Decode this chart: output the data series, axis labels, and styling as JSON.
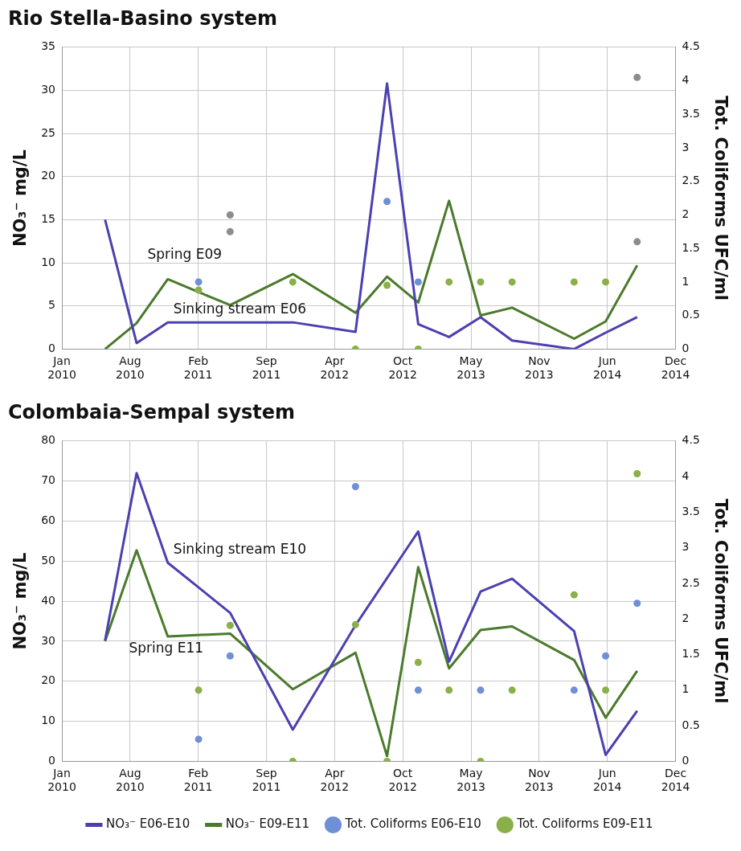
{
  "chart_data": [
    {
      "type": "line",
      "title": "Rio Stella-Basino system",
      "ylabel": "NO₃⁻ mg/L",
      "y2label": "Tot. Coliforms UFC/ml",
      "xlim": [
        "2010-01-26",
        "2014-12-22"
      ],
      "xticks": [
        {
          "value": "2010-01-26",
          "label": "Jan 2010"
        },
        {
          "value": "2010-08-13",
          "label": "Aug 2010"
        },
        {
          "value": "2011-02-28",
          "label": "Feb 2011"
        },
        {
          "value": "2011-09-15",
          "label": "Sep 2011"
        },
        {
          "value": "2012-04-01",
          "label": "Apr 2012"
        },
        {
          "value": "2012-10-17",
          "label": "Oct 2012"
        },
        {
          "value": "2013-05-04",
          "label": "May 2013"
        },
        {
          "value": "2013-11-19",
          "label": "Nov 2013"
        },
        {
          "value": "2014-06-06",
          "label": "Jun 2014"
        },
        {
          "value": "2014-12-22",
          "label": "Dec 2014"
        }
      ],
      "ylim": [
        0,
        35
      ],
      "yticks": [
        0,
        5,
        10,
        15,
        20,
        25,
        30,
        35
      ],
      "y2lim": [
        0,
        4.5
      ],
      "y2ticks": [
        0,
        0.5,
        1,
        1.5,
        2,
        2.5,
        3,
        3.5,
        4,
        4.5
      ],
      "grid": true,
      "legend": false,
      "marker": "none",
      "series": [
        {
          "color": "#4b40b0",
          "x": [
            "2010-06-01",
            "2010-09-01",
            "2010-12-01",
            "2011-06-01",
            "2011-12-01",
            "2012-06-01",
            "2012-09-01",
            "2012-12-01",
            "2013-03-01",
            "2013-06-01",
            "2013-09-01",
            "2014-03-01",
            "2014-06-01",
            "2014-09-01"
          ],
          "values": [
            15,
            0.7,
            3.1,
            3.1,
            3.1,
            2,
            30.8,
            2.9,
            1.4,
            3.7,
            1,
            0,
            1.9,
            3.7
          ]
        },
        {
          "color": "#4a7a2c",
          "x": [
            "2010-06-01",
            "2010-09-01",
            "2010-12-01",
            "2011-06-01",
            "2011-12-01",
            "2012-06-01",
            "2012-09-01",
            "2012-12-01",
            "2013-03-01",
            "2013-06-01",
            "2013-09-01",
            "2014-03-01",
            "2014-06-01",
            "2014-09-01"
          ],
          "values": [
            0,
            3,
            8.1,
            5.1,
            8.7,
            4.2,
            8.4,
            5.4,
            17.2,
            3.9,
            4.8,
            1.2,
            3.2,
            9.7
          ]
        },
        {
          "type": "scatter",
          "marker": "circle",
          "axis": "y2",
          "color": "#6f8fd6",
          "colors": [
            "#6f8fd6",
            "#8c8c8c",
            "#6f8fd6",
            "#6f8fd6",
            "#8c8c8c"
          ],
          "x": [
            "2011-03-01",
            "2011-06-01",
            "2012-09-01",
            "2012-12-01",
            "2014-09-01"
          ],
          "values": [
            1,
            2,
            2.2,
            1,
            4.05
          ]
        },
        {
          "type": "scatter",
          "marker": "circle",
          "axis": "y2",
          "color": "#8ab04a",
          "colors": [
            "#8ab04a",
            "#8c8c8c",
            "#8ab04a",
            "#8ab04a",
            "#8ab04a",
            "#8ab04a",
            "#8ab04a",
            "#8ab04a",
            "#8ab04a",
            "#8ab04a",
            "#8ab04a",
            "#8c8c8c"
          ],
          "x": [
            "2011-03-01",
            "2011-06-01",
            "2011-12-01",
            "2012-06-01",
            "2012-09-01",
            "2012-12-01",
            "2013-03-01",
            "2013-06-01",
            "2013-09-01",
            "2014-03-01",
            "2014-06-01",
            "2014-09-01"
          ],
          "values": [
            0.88,
            1.75,
            1,
            0,
            0.95,
            0,
            1,
            1,
            1,
            1,
            1,
            1.6
          ]
        }
      ],
      "annotations": [
        "Spring E09",
        "Sinking stream E06"
      ]
    },
    {
      "type": "line",
      "title": "Colombaia-Sempal system",
      "ylabel": "NO₃⁻ mg/L",
      "y2label": "Tot. Coliforms UFC/ml",
      "xlim": [
        "2010-01-26",
        "2014-12-22"
      ],
      "xticks": [
        {
          "value": "2010-01-26",
          "label": "Jan 2010"
        },
        {
          "value": "2010-08-13",
          "label": "Aug 2010"
        },
        {
          "value": "2011-02-28",
          "label": "Feb 2011"
        },
        {
          "value": "2011-09-15",
          "label": "Sep 2011"
        },
        {
          "value": "2012-04-01",
          "label": "Apr 2012"
        },
        {
          "value": "2012-10-17",
          "label": "Oct 2012"
        },
        {
          "value": "2013-05-04",
          "label": "May 2013"
        },
        {
          "value": "2013-11-19",
          "label": "Nov 2013"
        },
        {
          "value": "2014-06-06",
          "label": "Jun 2014"
        },
        {
          "value": "2014-12-22",
          "label": "Dec 2014"
        }
      ],
      "ylim": [
        0,
        80
      ],
      "yticks": [
        0,
        10,
        20,
        30,
        40,
        50,
        60,
        70,
        80
      ],
      "y2lim": [
        0,
        4.5
      ],
      "y2ticks": [
        0,
        0.5,
        1,
        1.5,
        2,
        2.5,
        3,
        3.5,
        4,
        4.5
      ],
      "grid": true,
      "legend": "bottom",
      "marker": "none",
      "series": [
        {
          "name": "NO₃⁻ E06-E10",
          "color": "#4b40b0",
          "x": [
            "2010-06-01",
            "2010-09-01",
            "2010-12-01",
            "2011-06-01",
            "2011-12-01",
            "2012-06-01",
            "2012-12-01",
            "2013-03-01",
            "2013-06-01",
            "2013-09-01",
            "2014-03-01",
            "2014-06-01",
            "2014-09-01"
          ],
          "values": [
            30.2,
            72,
            49.6,
            37.1,
            7.9,
            34,
            57.4,
            24.9,
            42.4,
            45.6,
            32.5,
            1.6,
            12.6
          ]
        },
        {
          "name": "NO₃⁻ E09-E11",
          "color": "#4a7a2c",
          "x": [
            "2010-06-01",
            "2010-09-01",
            "2010-12-01",
            "2011-06-01",
            "2011-12-01",
            "2012-06-01",
            "2012-09-01",
            "2012-12-01",
            "2013-03-01",
            "2013-06-01",
            "2013-09-01",
            "2014-03-01",
            "2014-06-01",
            "2014-09-01"
          ],
          "values": [
            30,
            52.7,
            31.2,
            31.9,
            18,
            27.1,
            1.3,
            48.5,
            23.2,
            32.8,
            33.7,
            25.3,
            10.9,
            22.6
          ]
        },
        {
          "type": "scatter",
          "marker": "circle",
          "axis": "y2",
          "name": "Tot. Coliforms E06-E10",
          "color": "#6f8fd6",
          "x": [
            "2011-03-01",
            "2011-06-01",
            "2012-06-01",
            "2012-12-01",
            "2013-06-01",
            "2014-03-01",
            "2014-06-01",
            "2014-09-01"
          ],
          "values": [
            0.31,
            1.48,
            3.86,
            1,
            1,
            1,
            1.48,
            2.22
          ]
        },
        {
          "type": "scatter",
          "marker": "circle",
          "axis": "y2",
          "name": "Tot. Coliforms E09-E11",
          "color": "#8ab04a",
          "x": [
            "2011-03-01",
            "2011-06-01",
            "2011-12-01",
            "2012-06-01",
            "2012-09-01",
            "2012-12-01",
            "2013-03-01",
            "2013-06-01",
            "2013-09-01",
            "2014-03-01",
            "2014-06-01",
            "2014-09-01"
          ],
          "values": [
            1,
            1.91,
            0,
            1.92,
            0,
            1.39,
            1,
            0,
            1,
            2.34,
            1,
            4.04
          ]
        }
      ],
      "annotations": [
        "Sinking stream E10",
        "Spring E11"
      ]
    }
  ]
}
